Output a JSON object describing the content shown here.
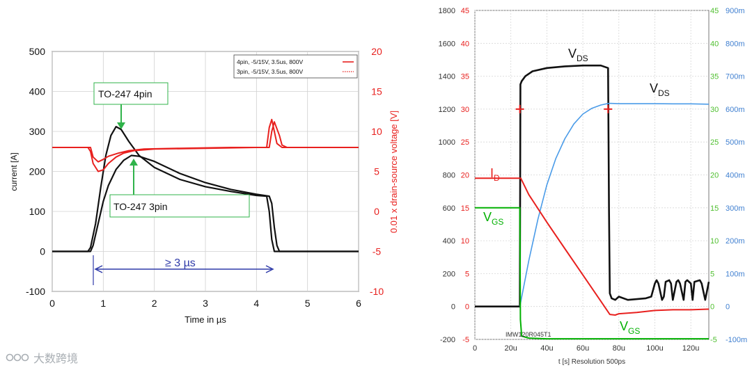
{
  "watermark": "大数跨境",
  "chart_data": [
    {
      "type": "line",
      "xlabel": "Time in µs",
      "ylabel_left": "current [A]",
      "ylabel_right": "0.01 x drain-source voltage [V]",
      "xlim": [
        0,
        6
      ],
      "xticks": [
        0,
        1,
        2,
        3,
        4,
        5,
        6
      ],
      "ylim_left": [
        -100,
        500
      ],
      "yticks_left": [
        -100,
        0,
        100,
        200,
        300,
        400,
        500
      ],
      "ylim_right": [
        -10,
        20
      ],
      "yticks_right": [
        -10,
        -5,
        0,
        5,
        10,
        15,
        20
      ],
      "grid": true,
      "legend_position": "top-right",
      "legend": [
        {
          "label": "4pin, -5/15V, 3.5us, 800V",
          "color": "#e8201e",
          "style": "solid"
        },
        {
          "label": "3pin, -5/15V, 3.5us, 800V",
          "color": "#e8201e",
          "style": "dotted"
        }
      ],
      "annotations": {
        "box_4pin": "TO-247 4pin",
        "box_3pin": "TO-247 3pin",
        "duration": "≥ 3 µs"
      },
      "series": [
        {
          "axis": "left",
          "color": "#111111",
          "x": [
            0,
            0.7,
            0.75,
            0.85,
            0.95,
            1.05,
            1.15,
            1.25,
            1.35,
            1.5,
            1.7,
            2.0,
            2.5,
            3.0,
            3.5,
            4.0,
            4.2,
            4.25,
            4.3,
            4.35,
            4.5,
            6.0
          ],
          "y": [
            0,
            0,
            10,
            70,
            160,
            240,
            290,
            312,
            305,
            275,
            240,
            210,
            180,
            162,
            150,
            140,
            138,
            100,
            30,
            0,
            0,
            0
          ]
        },
        {
          "axis": "left",
          "color": "#111111",
          "x": [
            0,
            0.75,
            0.8,
            0.9,
            1.0,
            1.1,
            1.25,
            1.4,
            1.55,
            1.7,
            2.0,
            2.5,
            3.0,
            3.5,
            4.0,
            4.25,
            4.3,
            4.35,
            4.4,
            4.45,
            4.6,
            6.0
          ],
          "y": [
            0,
            0,
            15,
            70,
            125,
            165,
            205,
            228,
            240,
            238,
            225,
            195,
            172,
            155,
            143,
            138,
            120,
            60,
            15,
            0,
            0,
            0
          ]
        },
        {
          "axis": "right",
          "color": "#e8201e",
          "x": [
            0,
            0.7,
            0.75,
            0.8,
            0.9,
            1.0,
            1.1,
            1.25,
            1.4,
            1.6,
            2.0,
            3.0,
            4.0,
            4.2,
            4.25,
            4.3,
            4.35,
            4.4,
            4.5,
            6.0
          ],
          "y": [
            8,
            8,
            7.5,
            6,
            5,
            5.2,
            6,
            6.8,
            7.3,
            7.6,
            7.8,
            7.9,
            8,
            8,
            10.5,
            11.5,
            10,
            8.5,
            8,
            8
          ]
        },
        {
          "axis": "right",
          "color": "#e8201e",
          "x": [
            0,
            0.75,
            0.8,
            0.9,
            1.0,
            1.1,
            1.3,
            1.5,
            1.8,
            2.5,
            3.5,
            4.25,
            4.3,
            4.35,
            4.45,
            4.5,
            4.6,
            6.0
          ],
          "y": [
            8,
            8,
            6.8,
            6.2,
            6.5,
            6.9,
            7.3,
            7.6,
            7.8,
            7.9,
            8,
            8,
            10,
            11.2,
            9.5,
            8.3,
            8,
            8
          ]
        }
      ]
    },
    {
      "type": "line",
      "xlabel": "t [s]  Resolution 500ps",
      "xlim": [
        0,
        130
      ],
      "xticks": [
        0,
        20,
        40,
        60,
        80,
        100,
        120
      ],
      "xtick_labels": [
        "0",
        "20u",
        "40u",
        "60u",
        "80u",
        "100u",
        "120u"
      ],
      "ylim_1": [
        -200,
        1800
      ],
      "yticks_1": [
        -200,
        0,
        200,
        400,
        600,
        800,
        1000,
        1200,
        1400,
        1600,
        1800
      ],
      "ylim_2": [
        -5,
        45
      ],
      "yticks_2": [
        -5,
        0,
        5,
        10,
        15,
        20,
        25,
        30,
        35,
        40,
        45
      ],
      "ylim_3": [
        -100,
        900
      ],
      "yticks_3": [
        "-100m",
        "0",
        "100m",
        "200m",
        "300m",
        "400m",
        "500m",
        "600m",
        "700m",
        "800m",
        "900m"
      ],
      "grid": true,
      "device_label": "IMW120R045T1",
      "labels": {
        "vds_main": "V",
        "vds_main_sub": "DS",
        "vds_curve": "V",
        "vds_curve_sub": "DS",
        "id": "I",
        "id_sub": "D",
        "vgs_upper": "V",
        "vgs_upper_sub": "GS",
        "vgs_lower": "V",
        "vgs_lower_sub": "GS"
      },
      "series": [
        {
          "name": "VDS",
          "color": "#111111",
          "x": [
            0,
            25,
            25.3,
            26,
            28,
            32,
            40,
            50,
            60,
            70,
            74,
            74.5,
            75,
            76,
            78,
            80,
            85,
            90,
            95,
            98,
            100,
            101,
            102,
            104,
            105,
            106,
            108,
            109,
            110,
            112,
            113,
            114,
            116,
            117,
            118,
            120,
            121,
            122,
            125,
            126,
            128,
            130
          ],
          "y": [
            0,
            0,
            1350,
            1370,
            1400,
            1430,
            1450,
            1460,
            1465,
            1465,
            1450,
            600,
            80,
            50,
            40,
            60,
            40,
            45,
            50,
            60,
            140,
            160,
            140,
            40,
            60,
            150,
            160,
            140,
            40,
            150,
            160,
            140,
            40,
            150,
            160,
            140,
            40,
            150,
            160,
            140,
            40,
            150
          ]
        },
        {
          "name": "VDS",
          "color": "#4a9be8",
          "x": [
            25,
            30,
            35,
            40,
            45,
            50,
            55,
            60,
            65,
            70,
            73,
            75,
            80,
            90,
            100,
            110,
            120,
            130
          ],
          "y": [
            0,
            280,
            530,
            740,
            900,
            1020,
            1110,
            1170,
            1205,
            1225,
            1232,
            1235,
            1233,
            1233,
            1233,
            1232,
            1232,
            1230
          ]
        },
        {
          "name": "ID",
          "color": "#e8201e",
          "x": [
            0,
            25,
            25.5,
            30,
            40,
            50,
            60,
            70,
            75,
            78,
            80,
            90,
            100,
            110,
            120,
            130
          ],
          "y": [
            19.5,
            19.5,
            19.5,
            17,
            12.8,
            8.8,
            4.8,
            0.8,
            -1.2,
            -1.3,
            -1.1,
            -0.9,
            -0.6,
            -0.5,
            -0.5,
            -0.4
          ]
        },
        {
          "name": "VGS",
          "color": "#00b000",
          "x": [
            0,
            25,
            25.3,
            26,
            30,
            40,
            60,
            80,
            100,
            120,
            130
          ],
          "y": [
            15,
            15,
            -2,
            -4.5,
            -4.8,
            -4.9,
            -4.9,
            -4.9,
            -4.9,
            -4.9,
            -4.9
          ]
        }
      ],
      "markers": [
        {
          "series": "VDS",
          "color": "#e8201e",
          "shape": "plus",
          "x": [
            25,
            74
          ],
          "y": [
            1200,
            1200
          ]
        }
      ]
    }
  ]
}
